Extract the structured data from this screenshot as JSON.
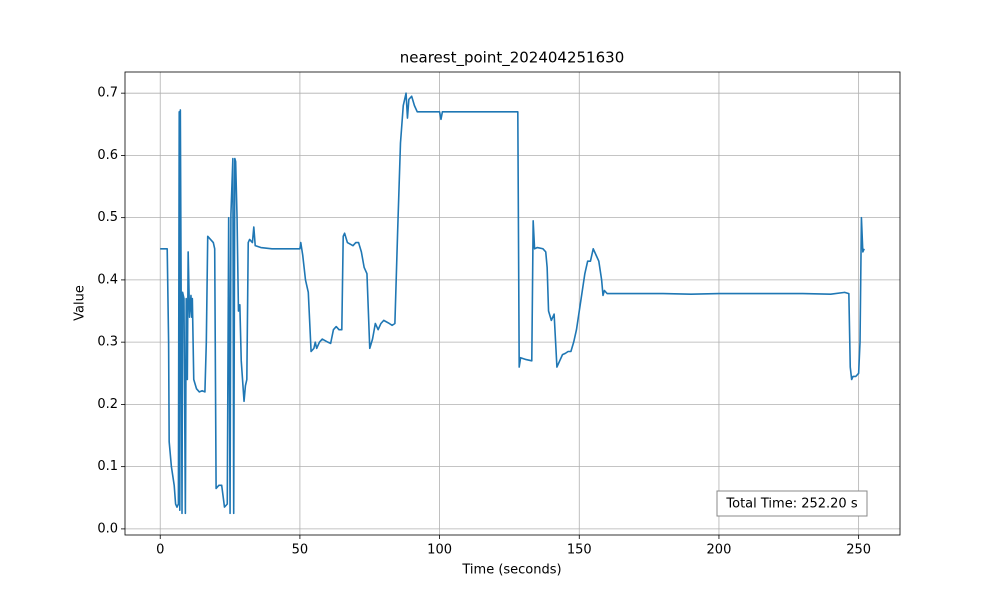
{
  "chart_data": {
    "type": "line",
    "title": "nearest_point_202404251630",
    "x_label": "Time (seconds)",
    "y_label": "Value",
    "annotation": "Total Time: 252.20 s",
    "color": "#1f77b4",
    "grid": true,
    "xlim": [
      -12.61,
      264.81
    ],
    "ylim": [
      -0.0098,
      0.734
    ],
    "xticks": [
      0,
      50,
      100,
      150,
      200,
      250
    ],
    "yticks": [
      {
        "value": 0,
        "label": "0.0"
      },
      0.1,
      0.2,
      0.3,
      0.4,
      0.5,
      0.6,
      0.7
    ],
    "x": [
      0,
      2,
      2.5,
      3,
      3.2,
      4,
      5,
      5.5,
      6,
      6.5,
      6.8,
      7,
      7.2,
      7.5,
      7.8,
      8,
      8.5,
      9,
      9.3,
      9.7,
      10,
      10.5,
      11,
      11.3,
      11.5,
      12,
      13,
      14,
      15,
      16,
      16.5,
      17,
      18,
      19,
      19.5,
      20,
      21,
      22,
      23,
      24,
      24.5,
      25,
      25.3,
      26,
      26.3,
      26.7,
      27,
      27.5,
      28,
      28.5,
      29,
      30,
      30.5,
      31,
      31.5,
      32,
      33,
      33.5,
      34,
      36,
      40,
      45,
      50,
      50.3,
      51,
      52,
      53,
      54,
      55,
      55.5,
      56,
      57,
      58,
      60,
      61,
      62,
      63,
      64,
      65,
      65.5,
      66,
      67,
      69,
      70,
      71,
      72,
      73,
      74,
      75,
      76,
      77,
      78,
      79,
      80,
      82,
      83,
      84,
      85,
      86,
      87,
      88,
      88.5,
      89,
      90,
      91,
      92,
      95,
      100,
      100.5,
      101,
      110,
      120,
      127,
      128,
      128.5,
      129,
      131,
      133,
      133.5,
      134,
      135,
      137,
      138,
      138.5,
      139,
      140,
      141,
      142,
      143,
      144,
      145,
      146,
      147,
      148,
      149,
      150,
      151,
      152,
      153,
      154,
      155,
      156,
      157,
      158,
      158.5,
      159,
      160,
      170,
      180,
      190,
      200,
      210,
      220,
      230,
      240,
      245,
      246.5,
      247,
      247.5,
      248,
      249,
      250,
      250.5,
      251,
      251.5,
      252
    ],
    "values": [
      0.45,
      0.45,
      0.45,
      0.3,
      0.14,
      0.1,
      0.07,
      0.04,
      0.035,
      0.04,
      0.67,
      0.03,
      0.673,
      0.37,
      0.025,
      0.38,
      0.37,
      0.025,
      0.37,
      0.24,
      0.445,
      0.34,
      0.375,
      0.34,
      0.37,
      0.24,
      0.225,
      0.22,
      0.222,
      0.22,
      0.3,
      0.47,
      0.465,
      0.46,
      0.45,
      0.065,
      0.07,
      0.07,
      0.035,
      0.04,
      0.5,
      0.025,
      0.505,
      0.595,
      0.025,
      0.595,
      0.59,
      0.5,
      0.35,
      0.36,
      0.27,
      0.205,
      0.23,
      0.24,
      0.46,
      0.465,
      0.46,
      0.485,
      0.455,
      0.452,
      0.45,
      0.45,
      0.45,
      0.46,
      0.44,
      0.4,
      0.38,
      0.285,
      0.29,
      0.3,
      0.29,
      0.3,
      0.305,
      0.3,
      0.298,
      0.32,
      0.325,
      0.32,
      0.32,
      0.47,
      0.475,
      0.46,
      0.455,
      0.46,
      0.46,
      0.445,
      0.42,
      0.41,
      0.29,
      0.305,
      0.33,
      0.32,
      0.33,
      0.335,
      0.33,
      0.327,
      0.33,
      0.48,
      0.62,
      0.68,
      0.7,
      0.66,
      0.69,
      0.695,
      0.68,
      0.67,
      0.67,
      0.67,
      0.658,
      0.67,
      0.67,
      0.67,
      0.67,
      0.67,
      0.26,
      0.275,
      0.272,
      0.27,
      0.495,
      0.45,
      0.452,
      0.45,
      0.445,
      0.42,
      0.35,
      0.335,
      0.345,
      0.26,
      0.27,
      0.28,
      0.282,
      0.285,
      0.285,
      0.3,
      0.32,
      0.35,
      0.38,
      0.41,
      0.43,
      0.43,
      0.45,
      0.44,
      0.43,
      0.4,
      0.375,
      0.383,
      0.378,
      0.378,
      0.378,
      0.377,
      0.378,
      0.378,
      0.378,
      0.378,
      0.377,
      0.38,
      0.378,
      0.26,
      0.24,
      0.245,
      0.245,
      0.25,
      0.3,
      0.5,
      0.445,
      0.45
    ]
  }
}
